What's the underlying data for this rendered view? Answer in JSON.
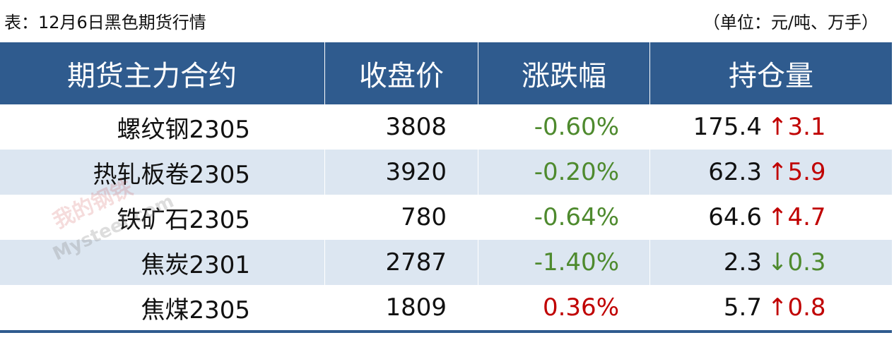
{
  "header": {
    "title": "表：12月6日黑色期货行情",
    "unit": "（单位：元/吨、万手）"
  },
  "watermark": {
    "brand": "我的钢铁",
    "site": "Mysteel.com"
  },
  "table": {
    "columns": [
      "期货主力合约",
      "收盘价",
      "涨跌幅",
      "持仓量"
    ],
    "header_color": "#2f5b8e",
    "stripe_color": "#dce6f1",
    "rows": [
      {
        "contract": "螺纹钢2305",
        "close": "3808",
        "change": "-0.60%",
        "change_color": "#4e8a2e",
        "oi": "175.4",
        "oi_change": "↑3.1",
        "oi_change_color": "#c00000"
      },
      {
        "contract": "热轧板卷2305",
        "close": "3920",
        "change": "-0.20%",
        "change_color": "#4e8a2e",
        "oi": "62.3",
        "oi_change": "↑5.9",
        "oi_change_color": "#c00000"
      },
      {
        "contract": "铁矿石2305",
        "close": "780",
        "change": "-0.64%",
        "change_color": "#4e8a2e",
        "oi": "64.6",
        "oi_change": "↑4.7",
        "oi_change_color": "#c00000"
      },
      {
        "contract": "焦炭2301",
        "close": "2787",
        "change": "-1.40%",
        "change_color": "#4e8a2e",
        "oi": "2.3",
        "oi_change": "↓0.3",
        "oi_change_color": "#4e8a2e"
      },
      {
        "contract": "焦煤2305",
        "close": "1809",
        "change": "0.36%",
        "change_color": "#c00000",
        "oi": "5.7",
        "oi_change": "↑0.8",
        "oi_change_color": "#c00000"
      }
    ]
  }
}
